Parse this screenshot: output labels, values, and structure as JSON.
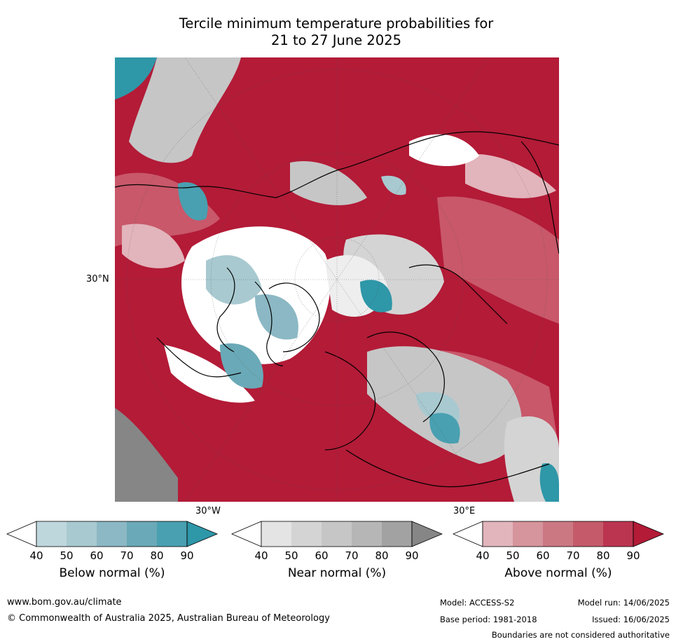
{
  "title_line1": "Tercile minimum temperature probabilities for",
  "title_line2": "21 to 27 June 2025",
  "map": {
    "projection": "north-polar-stereographic",
    "labels": {
      "lat_30n": "30°N",
      "lon_30w": "30°W",
      "lon_30e": "30°E"
    },
    "colors": {
      "above_strong": "#b31b37",
      "above_mid": "#c8586a",
      "above_light": "#e2b4bb",
      "near": "#c6c6c6",
      "near_dark": "#868686",
      "below_light": "#a8c9d0",
      "below_strong": "#2e97a8",
      "white": "#ffffff"
    }
  },
  "colorbars": [
    {
      "title": "Below normal (%)",
      "ticks": [
        "40",
        "50",
        "60",
        "70",
        "80",
        "90"
      ],
      "colors": [
        "#ffffff",
        "#bed7dc",
        "#a8c9d0",
        "#8bb8c4",
        "#6aa9b7",
        "#49a0b0",
        "#2e97a8"
      ]
    },
    {
      "title": "Near normal (%)",
      "ticks": [
        "40",
        "50",
        "60",
        "70",
        "80",
        "90"
      ],
      "colors": [
        "#ffffff",
        "#e4e4e4",
        "#d4d4d4",
        "#c6c6c6",
        "#b6b6b6",
        "#a2a2a2",
        "#868686"
      ]
    },
    {
      "title": "Above normal (%)",
      "ticks": [
        "40",
        "50",
        "60",
        "70",
        "80",
        "90"
      ],
      "colors": [
        "#ffffff",
        "#e2b4bb",
        "#d6949d",
        "#cc7883",
        "#c45a6a",
        "#bb3550",
        "#b31b37"
      ]
    }
  ],
  "footer": {
    "website": "www.bom.gov.au/climate",
    "copyright": "© Commonwealth of Australia 2025, Australian Bureau of Meteorology",
    "model": "Model: ACCESS-S2",
    "model_run": "Model run: 14/06/2025",
    "base_period": "Base period: 1981-2018",
    "issued": "Issued: 16/06/2025",
    "disclaimer": "Boundaries are not considered authoritative"
  }
}
